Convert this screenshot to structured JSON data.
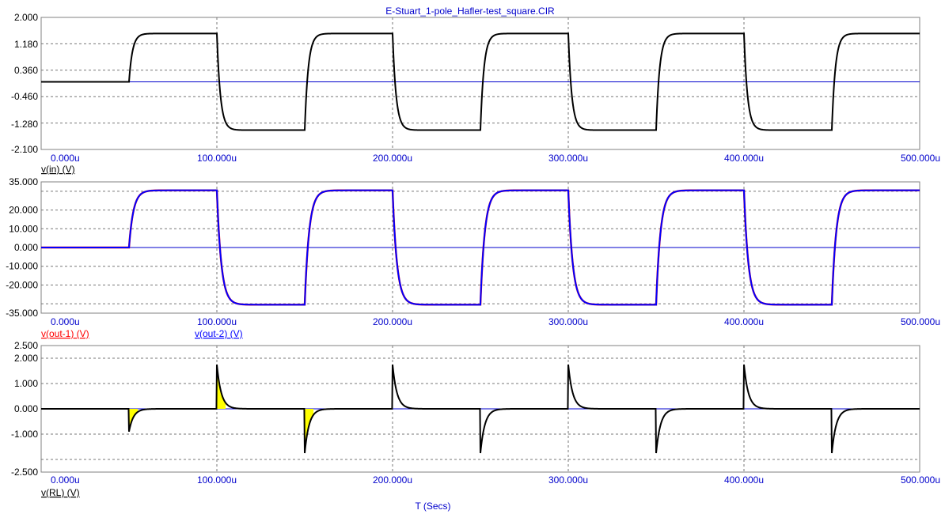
{
  "window": {
    "title": "E-Stuart_1-pole_Hafler-test_square.CIR"
  },
  "chart_data": [
    {
      "type": "line",
      "ylim": [
        -2.1,
        2.0
      ],
      "yticks": [
        "2.000",
        "1.180",
        "0.360",
        "-0.460",
        "-1.280",
        "-2.100"
      ],
      "xlim": [
        0,
        500
      ],
      "xticks": [
        "0.000u",
        "100.000u",
        "200.000u",
        "300.000u",
        "400.000u",
        "500.000u"
      ],
      "grid": true,
      "legend": [
        {
          "name": "v(in) (V)",
          "color": "#000000"
        }
      ],
      "series": [
        {
          "name": "v(in) (V)",
          "color": "#000000",
          "kind": "square",
          "amplitude": 1.5,
          "tau_us": 2.0
        }
      ]
    },
    {
      "type": "line",
      "ylim": [
        -35,
        35
      ],
      "yticks": [
        "35.000",
        "20.000",
        "10.000",
        "0.000",
        "-10.000",
        "-20.000",
        "-35.000"
      ],
      "ytick_values": [
        35,
        20,
        10,
        0,
        -10,
        -20,
        -35
      ],
      "grid_values": [
        30,
        20,
        10,
        0,
        -10,
        -20,
        -30
      ],
      "xlim": [
        0,
        500
      ],
      "xticks": [
        "0.000u",
        "100.000u",
        "200.000u",
        "300.000u",
        "400.000u",
        "500.000u"
      ],
      "grid": true,
      "legend": [
        {
          "name": "v(out-1) (V)",
          "color": "#ff0000"
        },
        {
          "name": "v(out-2) (V)",
          "color": "#0000ff"
        }
      ],
      "series": [
        {
          "name": "v(out-1) (V)",
          "color": "#ff0000",
          "kind": "square",
          "amplitude": 30.5,
          "tau_us": 2.5
        },
        {
          "name": "v(out-2) (V)",
          "color": "#0000ff",
          "kind": "square",
          "amplitude": 30.5,
          "tau_us": 2.5
        }
      ]
    },
    {
      "type": "line",
      "ylim": [
        -2.5,
        2.5
      ],
      "yticks": [
        "2.500",
        "2.000",
        "1.000",
        "0.000",
        "-1.000",
        "-2.500"
      ],
      "ytick_values": [
        2.5,
        2.0,
        1.0,
        0.0,
        -1.0,
        -2.5
      ],
      "grid_values": [
        2,
        1,
        0,
        -1,
        -2
      ],
      "xlim": [
        0,
        500
      ],
      "xticks": [
        "0.000u",
        "100.000u",
        "200.000u",
        "300.000u",
        "400.000u",
        "500.000u"
      ],
      "xlabel": "T (Secs)",
      "grid": true,
      "legend": [
        {
          "name": "v(RL) (V)",
          "color": "#000000"
        }
      ],
      "series": [
        {
          "name": "v(RL) (V)",
          "color": "#000000",
          "kind": "spike",
          "first_edge_peak": -0.9,
          "peak": 1.75,
          "tau_us": 2.5
        }
      ],
      "shaded_regions": [
        {
          "start_us": 50,
          "end_us": 55,
          "color": "#ffff00"
        },
        {
          "start_us": 100,
          "end_us": 105,
          "color": "#ffff00"
        },
        {
          "start_us": 150,
          "end_us": 155,
          "color": "#ffff00"
        }
      ]
    }
  ],
  "edges_us": [
    50,
    100,
    150,
    200,
    250,
    300,
    350,
    400,
    450
  ]
}
